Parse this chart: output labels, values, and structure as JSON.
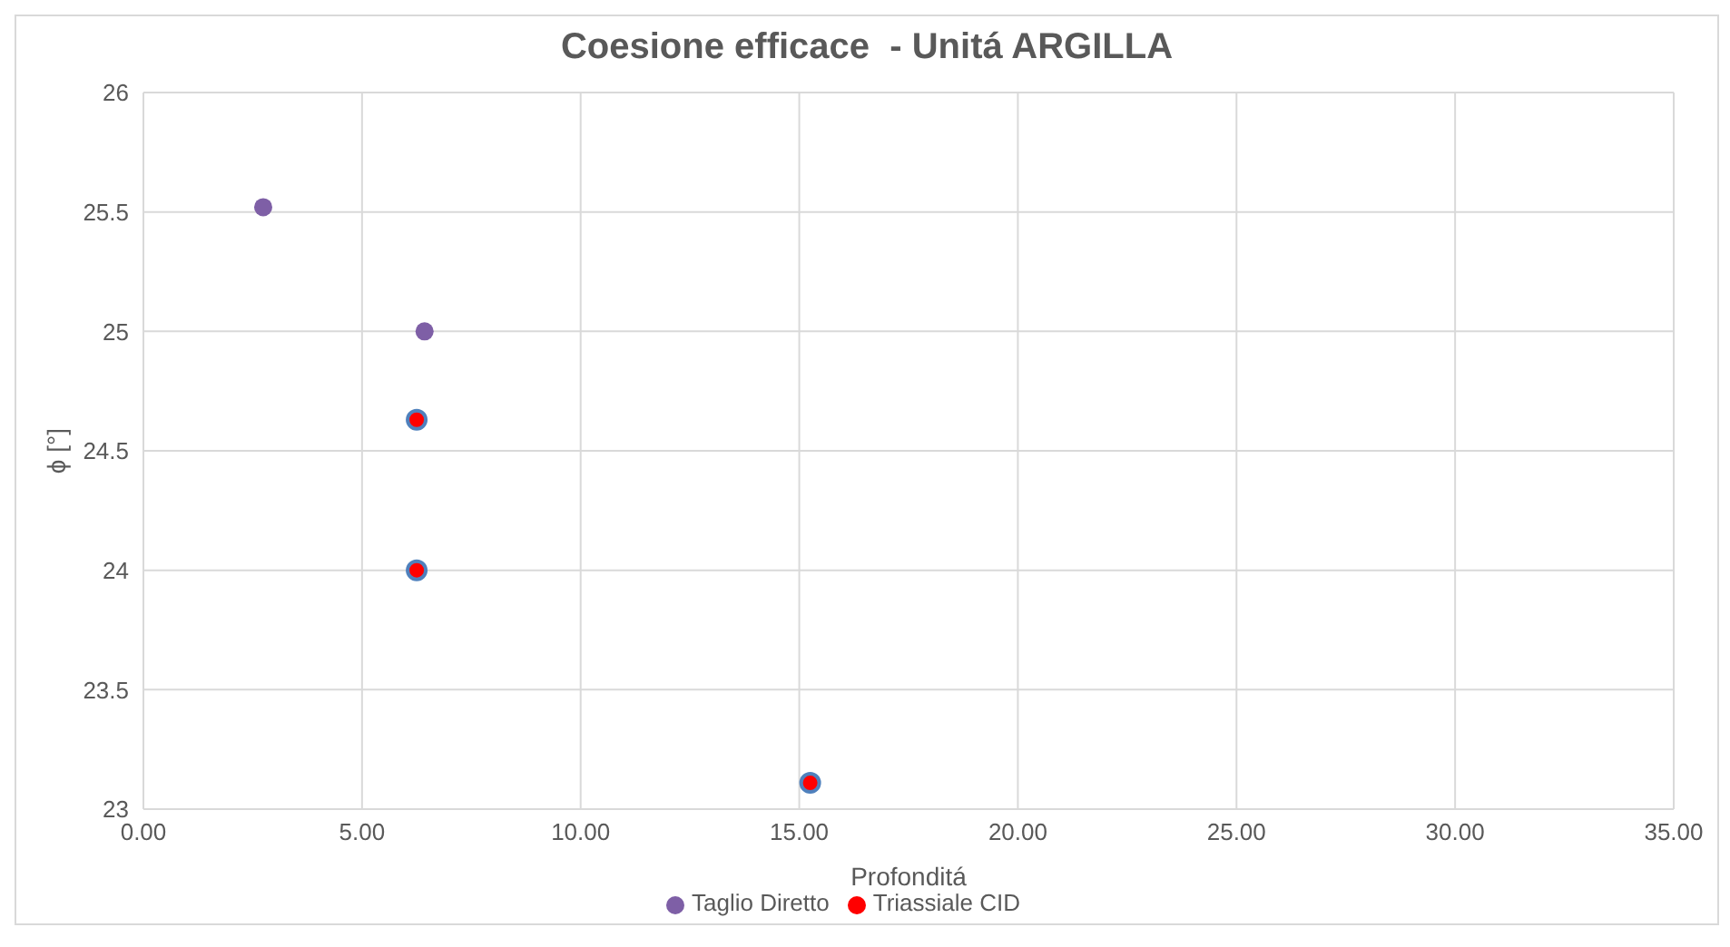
{
  "chart_data": {
    "type": "scatter",
    "title": "Coesione efficace  - Unitá ARGILLA",
    "xlabel": "Profonditá",
    "ylabel": "ϕ [°]",
    "series": [
      {
        "name": "Taglio Diretto",
        "color": "#7e5fa6",
        "x": [
          2.74,
          6.43
        ],
        "values": [
          25.52,
          25.0
        ]
      },
      {
        "name": "Triassiale CID",
        "color": "#ff0000",
        "x": [
          6.25,
          6.25,
          15.25
        ],
        "values": [
          24.63,
          24.0,
          23.11
        ]
      }
    ],
    "xlim": [
      0,
      35
    ],
    "xticks": [
      {
        "value": 0,
        "label": "0.00"
      },
      {
        "value": 5,
        "label": "5.00"
      },
      {
        "value": 10,
        "label": "10.00"
      },
      {
        "value": 15,
        "label": "15.00"
      },
      {
        "value": 20,
        "label": "20.00"
      },
      {
        "value": 25,
        "label": "25.00"
      },
      {
        "value": 30,
        "label": "30.00"
      },
      {
        "value": 35,
        "label": "35.00"
      }
    ],
    "ylim": [
      23,
      26
    ],
    "yticks": [
      23,
      23.5,
      24,
      24.5,
      25,
      25.5,
      26
    ],
    "grid": true,
    "legend": "bottom",
    "marker": "circle"
  }
}
